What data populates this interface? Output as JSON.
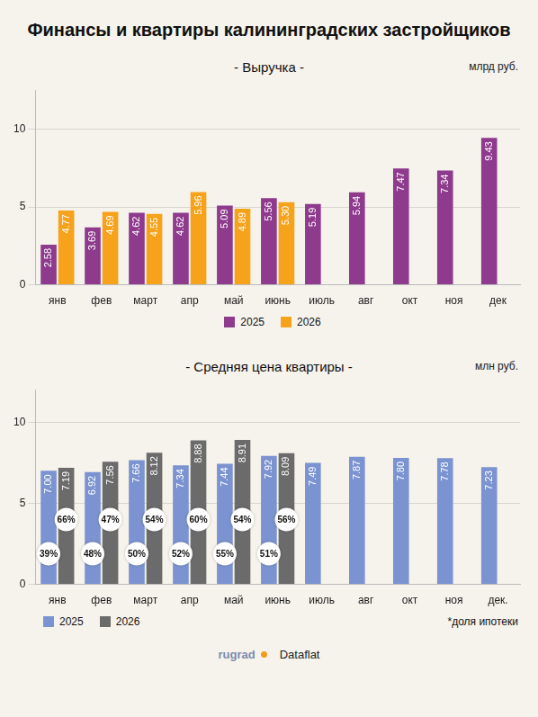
{
  "title": "Финансы и квартиры калининградских застройщиков",
  "footer": [
    "rugrad",
    "Dataflat"
  ],
  "chart_data": [
    {
      "type": "bar",
      "title": "- Выручка -",
      "unit_label": "млрд руб.",
      "categories": [
        "янв",
        "фев",
        "март",
        "апр",
        "май",
        "июнь",
        "июль",
        "авг",
        "окт",
        "ноя",
        "дек"
      ],
      "series": [
        {
          "name": "2025",
          "color": "#8e3b8d",
          "values": [
            2.58,
            3.69,
            4.62,
            4.62,
            5.09,
            5.56,
            5.19,
            5.94,
            7.47,
            7.34,
            9.43
          ],
          "value_labels": [
            "2.58",
            "3.69",
            "4.62",
            "4.62",
            "5.09",
            "5.56",
            "5.19",
            "5.94",
            "7.47",
            "7.34",
            "9.43"
          ]
        },
        {
          "name": "2026",
          "color": "#f7a21b",
          "values": [
            4.77,
            4.69,
            4.55,
            5.96,
            4.89,
            5.3,
            null,
            null,
            null,
            null,
            null
          ],
          "value_labels": [
            "4.77",
            "4.69",
            "4.55",
            "5.96",
            "4.89",
            "5.30",
            null,
            null,
            null,
            null,
            null
          ]
        }
      ],
      "ylim": [
        0,
        12.5
      ],
      "yticks": [
        0,
        5,
        10
      ],
      "grid": true,
      "data_labels": true,
      "legend": "bottom"
    },
    {
      "type": "bar",
      "title": "- Средняя цена квартиры -",
      "unit_label": "млн руб.",
      "categories": [
        "янв",
        "фев",
        "март",
        "апр",
        "май",
        "июнь",
        "июль",
        "авг",
        "окт",
        "ноя",
        "дек."
      ],
      "series": [
        {
          "name": "2025",
          "color": "#7b93d0",
          "values": [
            7.0,
            6.92,
            7.66,
            7.34,
            7.44,
            7.92,
            7.49,
            7.87,
            7.8,
            7.78,
            7.23
          ],
          "value_labels": [
            "7.00",
            "6.92",
            "7.66",
            "7.34",
            "7.44",
            "7.92",
            "7.49",
            "7.87",
            "7.80",
            "7.78",
            "7.23"
          ],
          "mortgage_share": [
            39,
            48,
            50,
            52,
            55,
            51,
            null,
            null,
            null,
            null,
            null
          ],
          "mortgage_share_labels": [
            "39%",
            "48%",
            "50%",
            "52%",
            "55%",
            "51%",
            null,
            null,
            null,
            null,
            null
          ]
        },
        {
          "name": "2026",
          "color": "#6b6b6b",
          "values": [
            7.19,
            7.56,
            8.12,
            8.88,
            8.91,
            8.09,
            null,
            null,
            null,
            null,
            null
          ],
          "value_labels": [
            "7.19",
            "7.56",
            "8.12",
            "8.88",
            "8.91",
            "8.09",
            null,
            null,
            null,
            null,
            null
          ],
          "mortgage_share": [
            66,
            47,
            54,
            60,
            54,
            56,
            null,
            null,
            null,
            null,
            null
          ],
          "mortgage_share_labels": [
            "66%",
            "47%",
            "54%",
            "60%",
            "54%",
            "56%",
            null,
            null,
            null,
            null,
            null
          ]
        }
      ],
      "note": "*доля ипотеки",
      "ylim": [
        0,
        12
      ],
      "yticks": [
        0,
        5,
        10
      ],
      "grid": true,
      "data_labels": true,
      "legend": "bottom-left"
    }
  ]
}
